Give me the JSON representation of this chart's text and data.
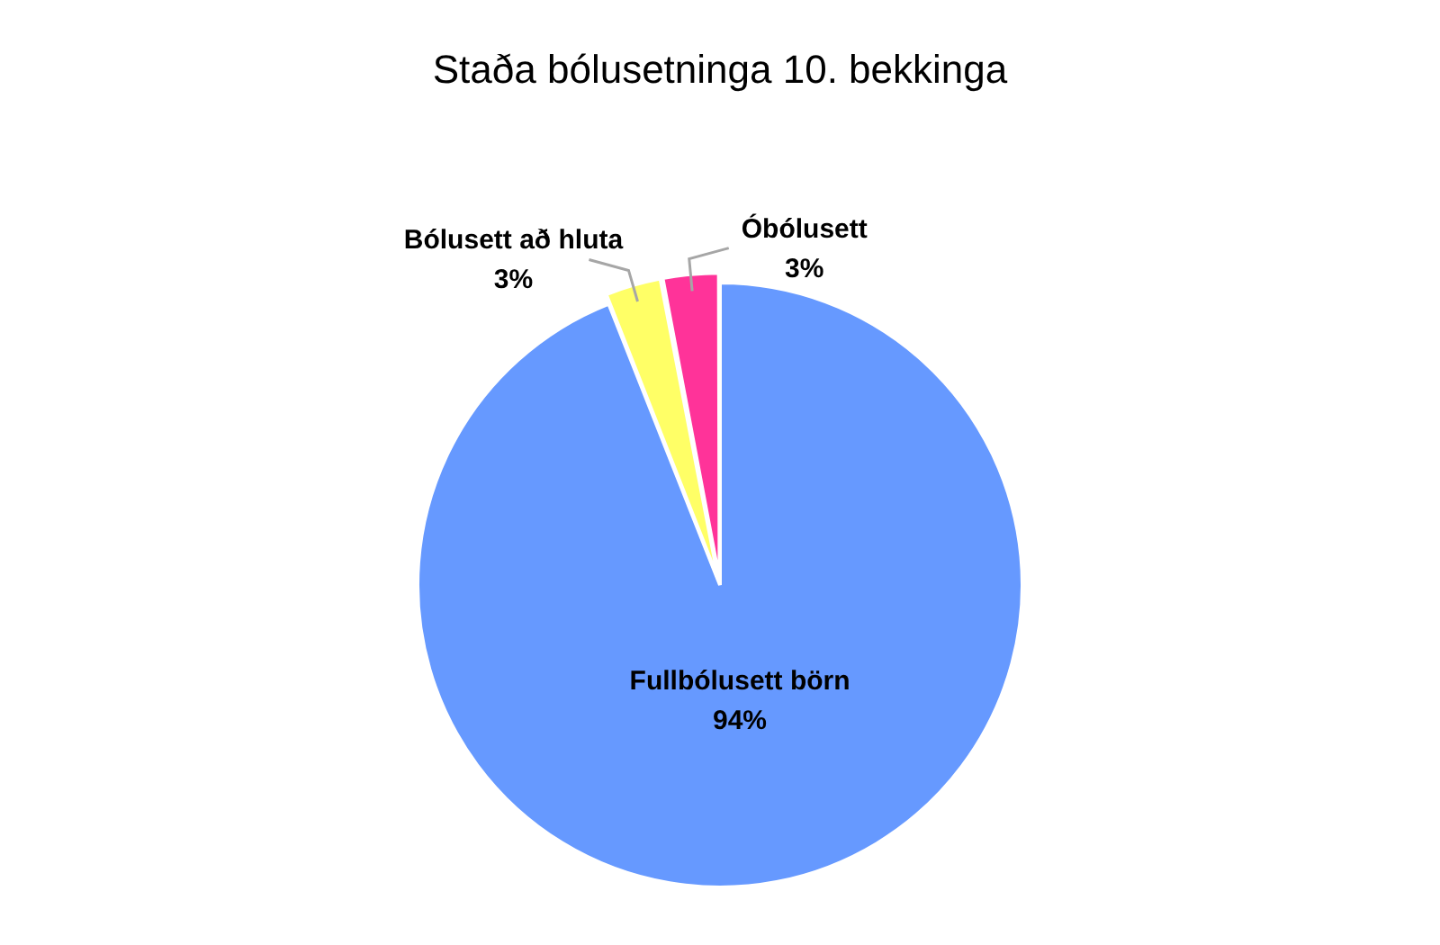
{
  "chart_data": {
    "type": "pie",
    "title": "Staða bólusetninga 10. bekkinga",
    "categories": [
      "Fullbólusett börn",
      "Bólusett að hluta",
      "Óbólusett"
    ],
    "values": [
      94,
      3,
      3
    ],
    "value_labels": [
      "94%",
      "3%",
      "3%"
    ],
    "colors": [
      "#6699ff",
      "#ffff66",
      "#ff3399"
    ],
    "legend": false
  }
}
